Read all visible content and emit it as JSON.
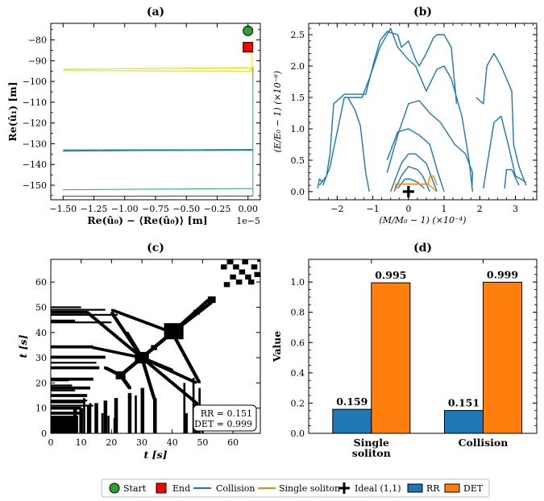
{
  "colors": {
    "collision": "#1f77b4",
    "single": "#ff7f0e",
    "rr_bar": "#1f77b4",
    "det_bar": "#ff7f0e",
    "start": "#2ca02c",
    "end": "#ff0000"
  },
  "legend": {
    "start": "Start",
    "end": "End",
    "collision": "Collision",
    "single": "Single soliton",
    "ideal": "Ideal (1,1)",
    "rr": "RR",
    "det": "DET"
  },
  "chart_data": [
    {
      "id": "a",
      "title": "(a)",
      "type": "line",
      "xlabel": "Re(û₀) − ⟨Re(û₀)⟩ [m]",
      "ylabel": "Re(û₁) [m]",
      "x_offset_label": "1e−5",
      "xlim": [
        -1.6,
        0.1
      ],
      "ylim": [
        -157,
        -72
      ],
      "xticks": [
        -1.5,
        -1.25,
        -1.0,
        -0.75,
        -0.5,
        -0.25,
        0.0
      ],
      "xticklabels": [
        "−1.50",
        "−1.25",
        "−1.00",
        "−0.75",
        "−0.50",
        "−0.25",
        "0.00"
      ],
      "yticks": [
        -150,
        -140,
        -130,
        -120,
        -110,
        -100,
        -90,
        -80
      ],
      "yticklabels": [
        "−150",
        "−140",
        "−130",
        "−120",
        "−110",
        "−100",
        "−90",
        "−80"
      ],
      "series": [
        {
          "name": "orbit-1",
          "color": "#d6e42a",
          "x": [
            -1.5,
            0.0,
            0.04,
            -1.5
          ],
          "y": [
            -94.2,
            -93.3,
            -95.0,
            -94.8
          ]
        },
        {
          "name": "orbit-2",
          "color": "#f2e51c",
          "x": [
            -1.5,
            0.04
          ],
          "y": [
            -94.0,
            -93.6
          ]
        },
        {
          "name": "orbit-3",
          "color": "#2a788e",
          "x": [
            -1.5,
            0.04,
            -1.5
          ],
          "y": [
            -133.0,
            -132.8,
            -133.6
          ]
        },
        {
          "name": "orbit-4",
          "color": "#21918c",
          "x": [
            -1.5,
            0.04
          ],
          "y": [
            -133.4,
            -133.2
          ]
        },
        {
          "name": "orbit-5",
          "color": "#2cb17e",
          "x": [
            -1.5,
            0.04
          ],
          "y": [
            -152.2,
            -151.6
          ]
        },
        {
          "name": "orbit-6",
          "color": "#3b528b",
          "x": [
            -1.5,
            0.04
          ],
          "y": [
            -155.3,
            -155.2
          ]
        },
        {
          "name": "vertical-green",
          "color": "#35b779",
          "x": [
            0.04,
            0.04
          ],
          "y": [
            -155.2,
            -93.0
          ]
        },
        {
          "name": "vertical-yellow",
          "color": "#fde725",
          "x": [
            0.03,
            0.03
          ],
          "y": [
            -95,
            -80
          ]
        }
      ],
      "markers": {
        "start": {
          "x": 0.0,
          "y": -75.6
        },
        "end": {
          "x": 0.0,
          "y": -83.5
        }
      }
    },
    {
      "id": "b",
      "title": "(b)",
      "type": "line",
      "xlabel": "(M/M₀ − 1) (×10⁻⁴)",
      "ylabel": "(E/E₀ − 1) (×10⁻⁶)",
      "xlim": [
        -2.8,
        3.6
      ],
      "ylim": [
        -0.13,
        2.68
      ],
      "xticks": [
        -2,
        -1,
        0,
        1,
        2,
        3
      ],
      "xticklabels": [
        "−2",
        "−1",
        "0",
        "1",
        "2",
        "3"
      ],
      "yticks": [
        0.0,
        0.5,
        1.0,
        1.5,
        2.0,
        2.5
      ],
      "yticklabels": [
        "0.0",
        "0.5",
        "1.0",
        "1.5",
        "2.0",
        "2.5"
      ],
      "series": [
        {
          "name": "collision-1",
          "color": "#1f77b4",
          "x": [
            -2.5,
            -2.3,
            -2.2,
            -2.1,
            -1.8,
            -1.5,
            -1.2,
            -1.0,
            -0.8,
            -0.6,
            -0.3,
            -0.2,
            0.0,
            0.2,
            0.3,
            0.5,
            0.7,
            0.8,
            1.0,
            1.2,
            1.35
          ],
          "y": [
            0.1,
            0.25,
            0.6,
            1.4,
            1.55,
            1.55,
            1.55,
            2.0,
            2.4,
            2.55,
            2.5,
            2.3,
            2.4,
            2.1,
            2.0,
            2.2,
            2.45,
            2.5,
            2.5,
            2.3,
            1.4
          ]
        },
        {
          "name": "collision-2",
          "color": "#1f77b4",
          "x": [
            -2.4,
            -2.2,
            -1.8,
            -1.3,
            -1.1,
            -0.8,
            -0.5,
            -0.3,
            0.0,
            0.2,
            0.5,
            0.8,
            1.0,
            1.2,
            1.5,
            1.7,
            1.78,
            1.8
          ],
          "y": [
            0.1,
            0.4,
            1.5,
            1.5,
            1.8,
            2.3,
            2.6,
            2.3,
            2.1,
            2.0,
            1.6,
            1.95,
            2.0,
            1.8,
            1.2,
            0.5,
            0.1,
            0.0
          ]
        },
        {
          "name": "collision-3",
          "color": "#1f77b4",
          "x": [
            -1.7,
            -1.5,
            -1.35,
            -1.2,
            -1.1
          ],
          "y": [
            1.5,
            1.3,
            1.05,
            0.3,
            0.0
          ]
        },
        {
          "name": "collision-4",
          "color": "#1f77b4",
          "x": [
            -0.6,
            -0.3,
            0.0,
            0.3,
            0.6,
            0.9,
            1.3,
            1.6,
            1.8,
            1.78
          ],
          "y": [
            0.3,
            0.9,
            1.4,
            1.45,
            1.25,
            1.1,
            0.75,
            0.6,
            0.3,
            0.05
          ]
        },
        {
          "name": "collision-5",
          "color": "#1f77b4",
          "x": [
            -0.6,
            -0.3,
            0.0,
            0.3,
            0.6,
            0.8,
            1.0
          ],
          "y": [
            0.5,
            0.95,
            1.0,
            0.9,
            0.75,
            0.35,
            0.0
          ]
        },
        {
          "name": "collision-6",
          "color": "#1f77b4",
          "x": [
            -0.5,
            -0.2,
            0.0,
            0.2,
            0.5,
            0.8
          ],
          "y": [
            0.0,
            0.45,
            0.6,
            0.6,
            0.45,
            0.0
          ]
        },
        {
          "name": "collision-7",
          "color": "#1f77b4",
          "x": [
            -0.4,
            -0.2,
            0.0,
            0.25,
            0.4,
            0.6
          ],
          "y": [
            0.0,
            0.25,
            0.4,
            0.35,
            0.25,
            0.0
          ]
        },
        {
          "name": "collision-8",
          "color": "#1f77b4",
          "x": [
            -0.3,
            -0.1,
            0.05,
            0.25,
            0.45
          ],
          "y": [
            0.05,
            0.2,
            0.2,
            0.15,
            0.05
          ]
        },
        {
          "name": "collision-9",
          "color": "#1f77b4",
          "x": [
            1.9,
            2.1,
            2.2,
            2.4,
            2.6,
            2.9,
            2.95,
            3.1,
            3.3
          ],
          "y": [
            1.5,
            1.4,
            2.0,
            2.2,
            2.0,
            1.6,
            0.75,
            0.4,
            0.1
          ]
        },
        {
          "name": "collision-10",
          "color": "#1f77b4",
          "x": [
            2.1,
            2.2,
            2.3,
            2.4,
            2.6,
            2.8,
            3.0,
            3.3
          ],
          "y": [
            0.05,
            0.4,
            0.75,
            1.1,
            1.2,
            0.75,
            0.25,
            0.15
          ]
        },
        {
          "name": "collision-11",
          "color": "#1f77b4",
          "x": [
            2.7,
            2.75,
            2.9,
            3.1
          ],
          "y": [
            0.05,
            0.35,
            0.35,
            0.1
          ]
        },
        {
          "name": "collision-12",
          "color": "#1f77b4",
          "x": [
            -2.55,
            -2.5,
            -2.4
          ],
          "y": [
            0.05,
            0.2,
            0.15
          ]
        },
        {
          "name": "single-1",
          "color": "#ff7f0e",
          "x": [
            -0.4,
            -0.35,
            0.55,
            0.8
          ],
          "y": [
            0.0,
            0.12,
            0.12,
            0.0
          ]
        },
        {
          "name": "single-2",
          "color": "#ff7f0e",
          "x": [
            0.55,
            0.6,
            0.7,
            0.8
          ],
          "y": [
            0.12,
            0.25,
            0.25,
            0.1
          ]
        }
      ],
      "ideal": {
        "x": 0.0,
        "y": 0.0
      }
    },
    {
      "id": "c",
      "title": "(c)",
      "type": "heatmap",
      "xlabel": "t [s]",
      "ylabel": "t [s]",
      "xlim": [
        0,
        69
      ],
      "ylim": [
        0,
        69
      ],
      "xticks": [
        0,
        10,
        20,
        30,
        40,
        50,
        60
      ],
      "yticks": [
        0,
        10,
        20,
        30,
        40,
        50,
        60
      ],
      "xticklabels": [
        "0",
        "10",
        "20",
        "30",
        "40",
        "50",
        "60"
      ],
      "yticklabels": [
        "0",
        "10",
        "20",
        "30",
        "40",
        "50",
        "60"
      ],
      "annotation": [
        "RR = 0.151",
        "DET = 0.999"
      ]
    },
    {
      "id": "d",
      "title": "(d)",
      "type": "bar",
      "ylabel": "Value",
      "categories": [
        "Single soliton",
        "Collision"
      ],
      "category_lines": [
        [
          "Single",
          "soliton"
        ],
        [
          "Collision"
        ]
      ],
      "series": [
        {
          "name": "RR",
          "values": [
            0.159,
            0.151
          ],
          "labels": [
            "0.159",
            "0.151"
          ]
        },
        {
          "name": "DET",
          "values": [
            0.995,
            0.999
          ],
          "labels": [
            "0.995",
            "0.999"
          ]
        }
      ],
      "ylim": [
        0,
        1.15
      ],
      "yticks": [
        0.0,
        0.2,
        0.4,
        0.6,
        0.8,
        1.0
      ],
      "yticklabels": [
        "0.0",
        "0.2",
        "0.4",
        "0.6",
        "0.8",
        "1.0"
      ]
    }
  ]
}
